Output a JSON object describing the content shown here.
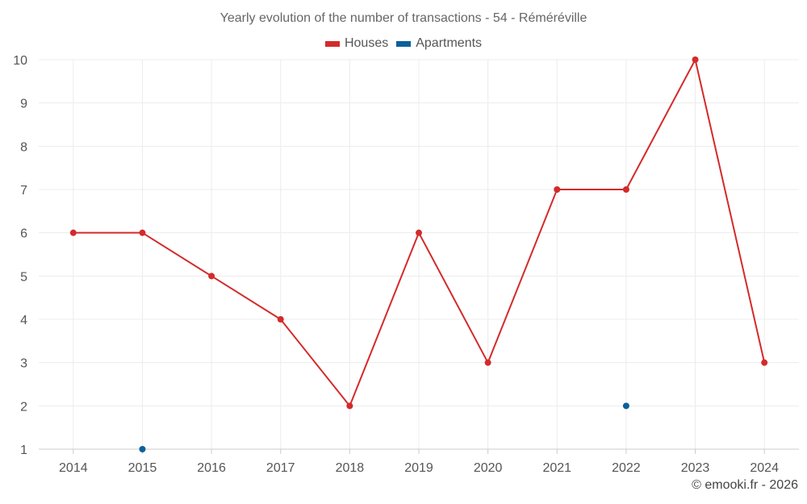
{
  "chart_data": {
    "type": "line",
    "title": "Yearly evolution of the number of transactions - 54 - Réméréville",
    "categories": [
      "2014",
      "2015",
      "2016",
      "2017",
      "2018",
      "2019",
      "2020",
      "2021",
      "2022",
      "2023",
      "2024"
    ],
    "series": [
      {
        "name": "Houses",
        "color": "#d42a2a",
        "values": [
          6,
          6,
          5,
          4,
          2,
          6,
          3,
          7,
          7,
          10,
          3
        ]
      },
      {
        "name": "Apartments",
        "color": "#0a6099",
        "values": [
          null,
          1,
          null,
          null,
          null,
          null,
          null,
          null,
          2,
          null,
          null
        ]
      }
    ],
    "yticks": [
      1,
      2,
      3,
      4,
      5,
      6,
      7,
      8,
      9,
      10
    ],
    "ylim": [
      1,
      10
    ],
    "xlabel": "",
    "ylabel": "",
    "grid": true,
    "legend_position": "top-center"
  },
  "footer": {
    "credit": "© emooki.fr - 2026"
  }
}
